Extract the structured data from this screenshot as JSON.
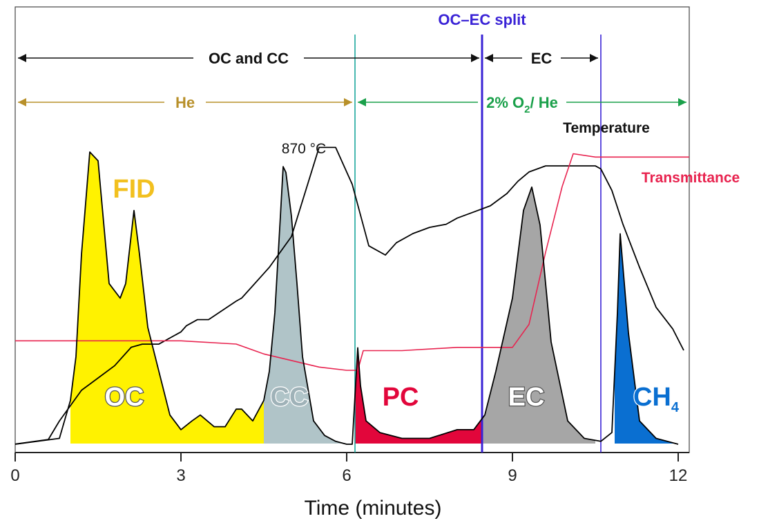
{
  "chart_data": {
    "type": "line",
    "title": "",
    "xlabel": "Time (minutes)",
    "ylabel": "",
    "xlim": [
      0,
      12.2
    ],
    "ylim": [
      0,
      1
    ],
    "x_ticks": [
      "0",
      "3",
      "6",
      "9",
      "12"
    ],
    "x_tick_values": [
      0,
      3,
      6,
      9,
      12
    ],
    "grid": false,
    "colors": {
      "temperature": "#000000",
      "transmittance": "#e8234f",
      "fid": "#000000",
      "oc_fill": "#fff200",
      "cc_fill": "#b0c4c8",
      "pc_fill": "#e2063b",
      "ec_fill": "#a6a6a6",
      "ch4_fill": "#0a6fd1",
      "split_line": "#3a23d6",
      "teal_line": "#1aa79c",
      "he_arrow": "#b8902a",
      "o2_arrow": "#1aa04a"
    },
    "series": [
      {
        "key": "temperature",
        "name": "Temperature",
        "x": [
          0,
          0.6,
          0.8,
          1.0,
          1.2,
          1.5,
          1.8,
          2.0,
          2.1,
          2.3,
          2.6,
          3.0,
          3.1,
          3.3,
          3.5,
          4.0,
          4.1,
          4.3,
          4.6,
          5.0,
          5.5,
          5.8,
          6.1,
          6.4,
          6.7,
          6.9,
          7.2,
          7.5,
          7.8,
          8.0,
          8.3,
          8.6,
          8.9,
          9.1,
          9.3,
          9.6,
          10.0,
          10.5,
          10.6,
          10.8,
          11.0,
          11.3,
          11.6,
          11.9,
          12.1
        ],
        "y": [
          0.005,
          0.02,
          0.08,
          0.13,
          0.18,
          0.22,
          0.26,
          0.3,
          0.32,
          0.33,
          0.33,
          0.37,
          0.39,
          0.41,
          0.41,
          0.47,
          0.48,
          0.52,
          0.58,
          0.68,
          0.97,
          0.97,
          0.85,
          0.65,
          0.62,
          0.66,
          0.69,
          0.71,
          0.72,
          0.74,
          0.76,
          0.78,
          0.82,
          0.86,
          0.89,
          0.91,
          0.91,
          0.91,
          0.9,
          0.83,
          0.72,
          0.58,
          0.45,
          0.38,
          0.31
        ],
        "label": "Temperature",
        "annotation": "870 °C"
      },
      {
        "key": "transmittance",
        "name": "Transmittance",
        "x": [
          0,
          1.0,
          2.0,
          3.0,
          4.0,
          4.5,
          5.0,
          5.5,
          6.0,
          6.2,
          6.3,
          7.0,
          8.0,
          8.5,
          9.0,
          9.3,
          9.6,
          9.9,
          10.1,
          10.5,
          11.0,
          12.2
        ],
        "y": [
          0.33,
          0.33,
          0.33,
          0.33,
          0.32,
          0.29,
          0.27,
          0.25,
          0.24,
          0.24,
          0.3,
          0.3,
          0.31,
          0.31,
          0.31,
          0.38,
          0.6,
          0.8,
          0.9,
          0.89,
          0.89,
          0.89
        ],
        "label": "Transmittance"
      },
      {
        "key": "fid",
        "name": "FID",
        "x": [
          0,
          0.8,
          1.0,
          1.1,
          1.2,
          1.35,
          1.5,
          1.7,
          1.9,
          2.0,
          2.15,
          2.25,
          2.4,
          2.6,
          2.8,
          3.0,
          3.2,
          3.35,
          3.6,
          3.8,
          4.0,
          4.1,
          4.3,
          4.5,
          4.6,
          4.7,
          4.8,
          4.85,
          4.9,
          5.0,
          5.1,
          5.2,
          5.4,
          5.6,
          5.8,
          6.0,
          6.1,
          6.2,
          6.25,
          6.35,
          6.6,
          7.0,
          7.5,
          8.0,
          8.3,
          8.5,
          8.7,
          9.0,
          9.2,
          9.35,
          9.5,
          9.7,
          10.0,
          10.3,
          10.6,
          10.8,
          10.9,
          10.95,
          11.1,
          11.3,
          11.6,
          12.0
        ],
        "y": [
          0.0,
          0.02,
          0.15,
          0.3,
          0.65,
          1.0,
          0.97,
          0.55,
          0.5,
          0.55,
          0.8,
          0.65,
          0.4,
          0.25,
          0.1,
          0.05,
          0.08,
          0.1,
          0.06,
          0.06,
          0.12,
          0.12,
          0.08,
          0.15,
          0.25,
          0.45,
          0.78,
          0.95,
          0.93,
          0.78,
          0.55,
          0.3,
          0.08,
          0.03,
          0.01,
          0.0,
          0.0,
          0.33,
          0.2,
          0.08,
          0.04,
          0.02,
          0.02,
          0.05,
          0.05,
          0.1,
          0.25,
          0.5,
          0.8,
          0.88,
          0.75,
          0.35,
          0.08,
          0.02,
          0.01,
          0.04,
          0.45,
          0.72,
          0.38,
          0.08,
          0.02,
          0.0
        ],
        "label": "FID"
      }
    ],
    "fills": [
      {
        "key": "oc",
        "label": "OC",
        "x_start": 1.0,
        "x_end": 4.5
      },
      {
        "key": "cc",
        "label": "CC",
        "x_start": 4.5,
        "x_end": 6.1
      },
      {
        "key": "pc",
        "label": "PC",
        "x_start": 6.15,
        "x_end": 8.45
      },
      {
        "key": "ec",
        "label": "EC",
        "x_start": 8.45,
        "x_end": 10.5
      },
      {
        "key": "ch4",
        "label": "CH",
        "sub": "4",
        "x_start": 10.85,
        "x_end": 12.0
      }
    ],
    "vertical_lines": [
      {
        "key": "teal",
        "x": 6.15
      },
      {
        "key": "split",
        "x": 8.45,
        "label": "OC–EC split"
      },
      {
        "key": "split2",
        "x": 10.6
      }
    ],
    "spans": [
      {
        "key": "oc_cc",
        "label": "OC and CC",
        "x_start": 0,
        "x_end": 8.45
      },
      {
        "key": "ec_span",
        "label": "EC",
        "x_start": 8.45,
        "x_end": 10.6
      },
      {
        "key": "he",
        "label": "He",
        "x_start": 0,
        "x_end": 6.15
      },
      {
        "key": "o2he",
        "label": "2% O",
        "sub": "2",
        "label_tail": "/ He",
        "x_start": 6.15,
        "x_end": 12.2
      }
    ],
    "labels": {
      "fid": "FID",
      "temp_annotation": "870 °C",
      "temperature": "Temperature",
      "transmittance": "Transmittance"
    }
  }
}
